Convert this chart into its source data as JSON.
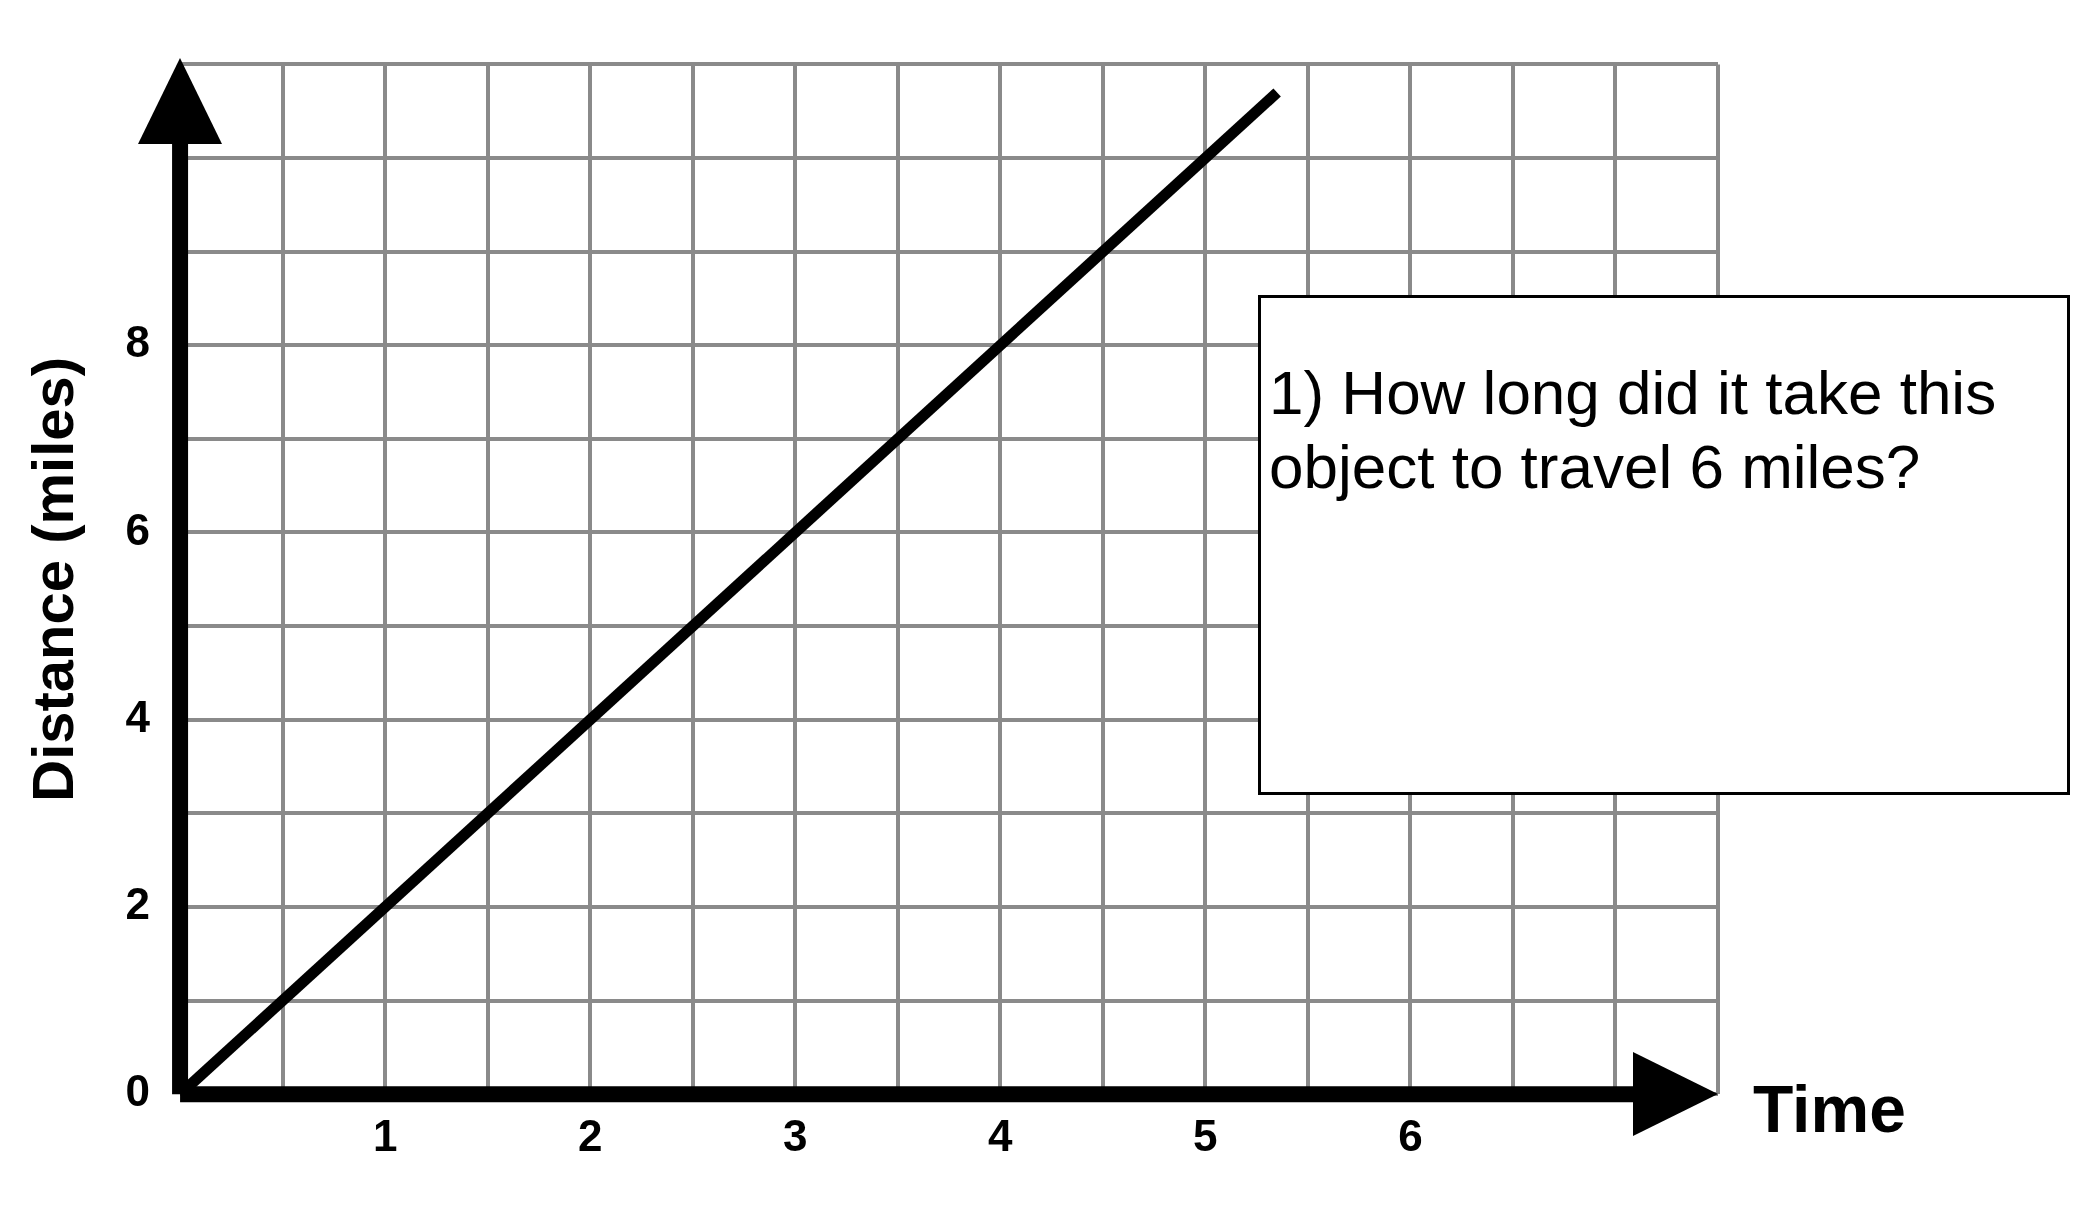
{
  "chart_data": {
    "type": "line",
    "xlabel": "Time",
    "ylabel": "Distance (miles)",
    "annotations": [
      "1) How long did it take this object to travel 6 miles?"
    ],
    "series": [
      {
        "color": "#000000",
        "x": [
          0,
          5.35
        ],
        "values": [
          0,
          10.7
        ]
      }
    ],
    "xlim": [
      0,
      7.5
    ],
    "ylim": [
      0,
      11
    ],
    "xticks": [
      {
        "value": 0,
        "label": null
      },
      {
        "value": 0.5,
        "label": null
      },
      1,
      {
        "value": 1.5,
        "label": null
      },
      2,
      {
        "value": 2.5,
        "label": null
      },
      3,
      {
        "value": 3.5,
        "label": null
      },
      4,
      {
        "value": 4.5,
        "label": null
      },
      5,
      {
        "value": 5.5,
        "label": null
      },
      6,
      {
        "value": 6.5,
        "label": null
      },
      {
        "value": 7,
        "label": null
      },
      {
        "value": 7.5,
        "label": null
      }
    ],
    "yticks": [
      0,
      {
        "value": 1,
        "label": null
      },
      2,
      {
        "value": 3,
        "label": null
      },
      4,
      {
        "value": 5,
        "label": null
      },
      6,
      {
        "value": 7,
        "label": null
      },
      8,
      {
        "value": 9,
        "label": null
      },
      {
        "value": 10,
        "label": null
      },
      {
        "value": 11,
        "label": null
      }
    ],
    "grid": true,
    "legend": false,
    "marker": "none",
    "line_style": "solid"
  }
}
